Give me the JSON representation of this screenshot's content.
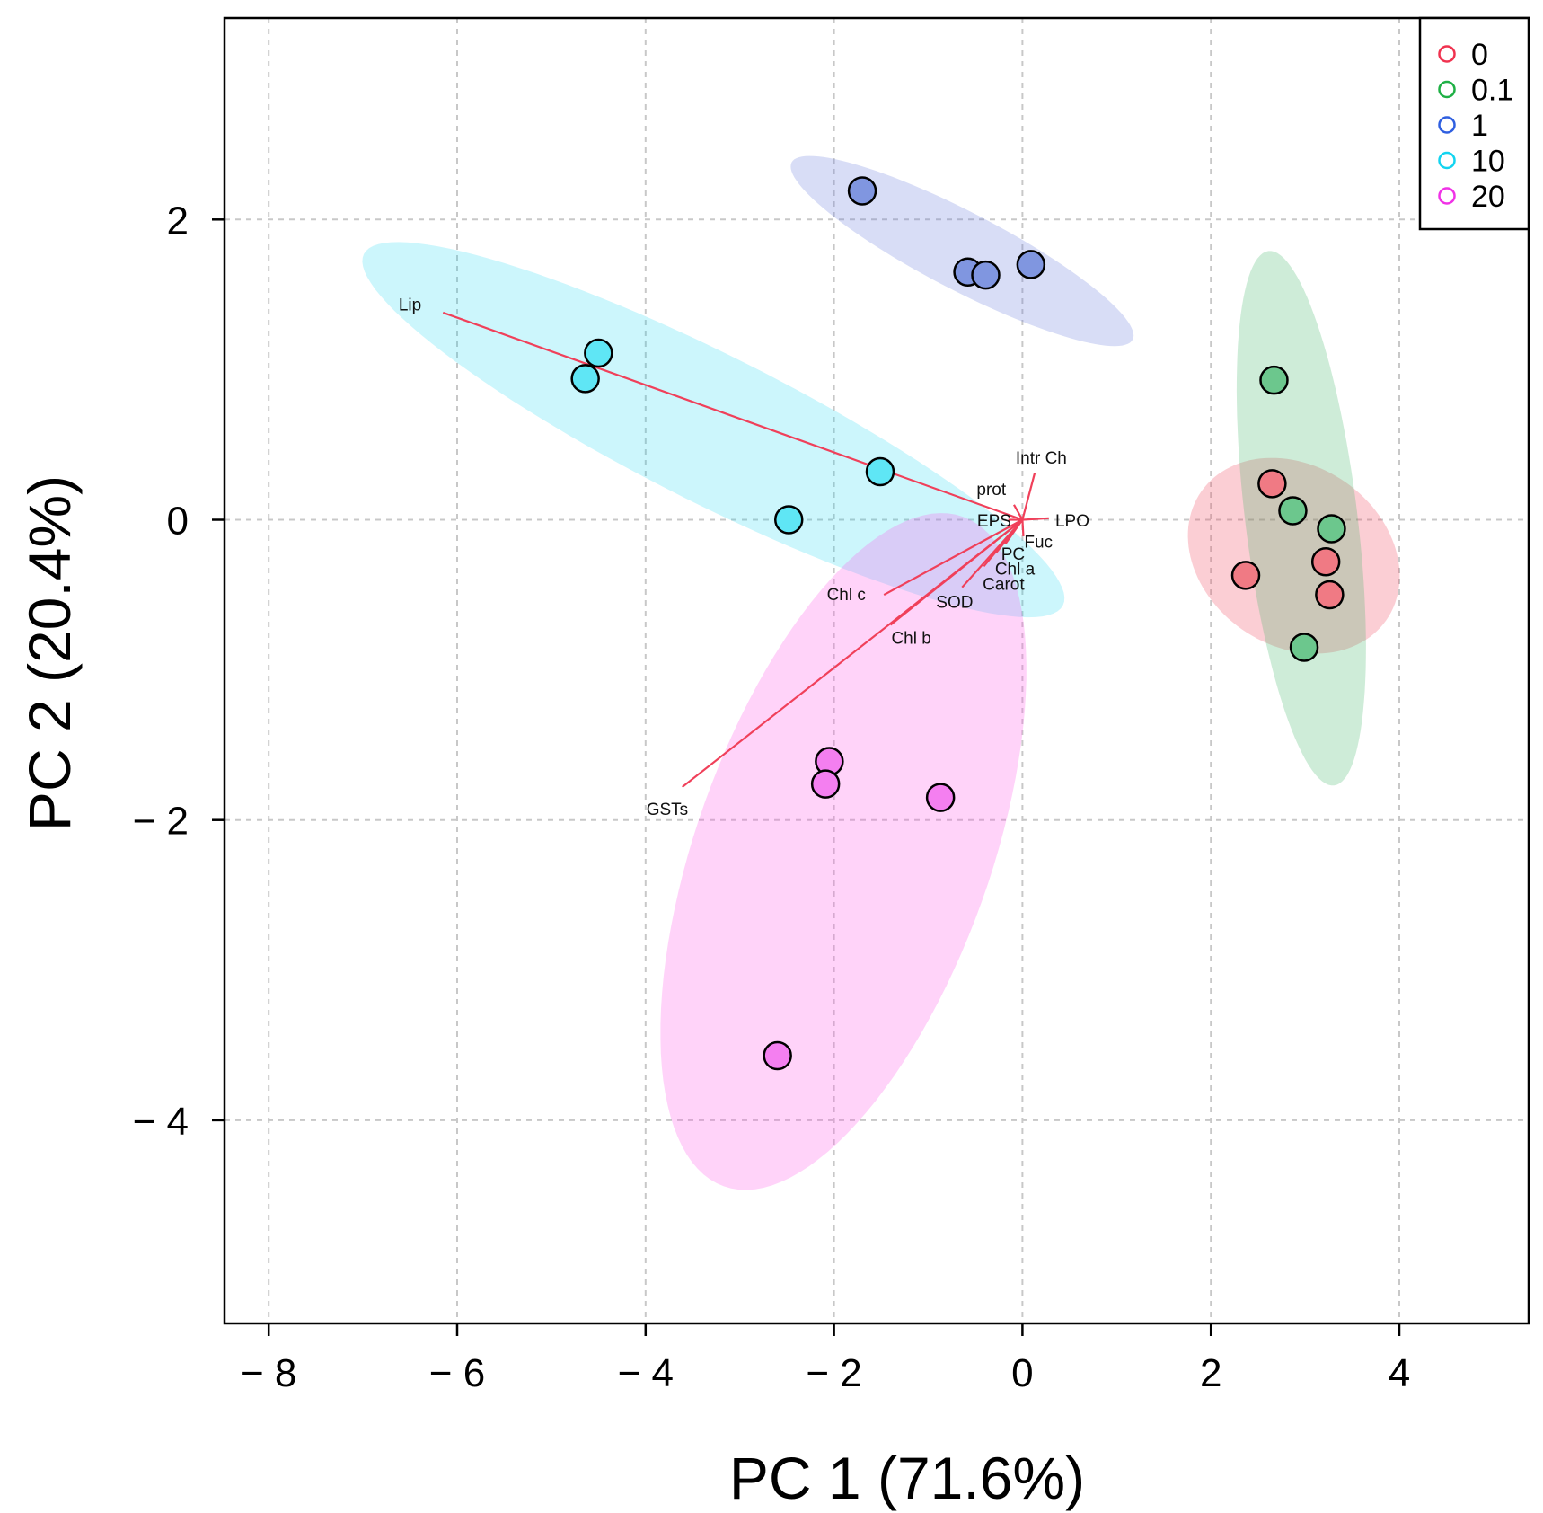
{
  "chart_data": {
    "type": "scatter",
    "title": "",
    "xlabel": "PC 1 (71.6%)",
    "ylabel": "PC 2 (20.4%)",
    "xlim": [
      -8.5,
      5.4
    ],
    "ylim": [
      -5.4,
      3.35
    ],
    "grid": true,
    "x_ticks": [
      -8,
      -6,
      -4,
      -2,
      0,
      2,
      4
    ],
    "x_tick_labels": [
      "− 8",
      "− 6",
      "− 4",
      "− 2",
      "0",
      "2",
      "4"
    ],
    "y_ticks": [
      -4,
      -2,
      0,
      2
    ],
    "y_tick_labels": [
      "− 4",
      "− 2",
      "0",
      "2"
    ],
    "legend_placement": "top-right",
    "series": [
      {
        "name": "0",
        "color": "#f0324f",
        "fill": "#f07a84",
        "ellipse_fill": "rgba(240,80,100,0.28)",
        "points": [
          [
            2.65,
            0.24
          ],
          [
            3.22,
            -0.28
          ],
          [
            3.26,
            -0.5
          ],
          [
            2.37,
            -0.37
          ]
        ],
        "ellipse": {
          "center": [
            2.88,
            -0.24
          ],
          "u": [
            0.98,
            -0.43
          ],
          "v": [
            -0.55,
            -0.49
          ]
        }
      },
      {
        "name": "0.1",
        "color": "#1fb045",
        "fill": "#6cc78d",
        "ellipse_fill": "rgba(60,180,100,0.25)",
        "points": [
          [
            2.67,
            0.93
          ],
          [
            2.87,
            0.06
          ],
          [
            3.28,
            -0.06
          ],
          [
            2.99,
            -0.85
          ]
        ],
        "ellipse": {
          "center": [
            2.96,
            0.01
          ],
          "u": [
            0.35,
            -1.78
          ],
          "v": [
            -0.59,
            -0.05
          ]
        }
      },
      {
        "name": "1",
        "color": "#2f5fe0",
        "fill": "#8096e0",
        "ellipse_fill": "rgba(100,120,220,0.25)",
        "points": [
          [
            -1.7,
            2.19
          ],
          [
            -0.58,
            1.65
          ],
          [
            -0.39,
            1.63
          ],
          [
            0.09,
            1.7
          ]
        ],
        "ellipse": {
          "center": [
            -0.64,
            1.79
          ],
          "u": [
            1.81,
            -0.59
          ],
          "v": [
            -0.19,
            -0.23
          ]
        }
      },
      {
        "name": "10",
        "color": "#12d4f0",
        "fill": "#5fe6f5",
        "ellipse_fill": "rgba(0,210,240,0.2)",
        "points": [
          [
            -4.5,
            1.11
          ],
          [
            -4.64,
            0.94
          ],
          [
            -1.51,
            0.32
          ],
          [
            -2.48,
            0.0
          ]
        ],
        "ellipse": {
          "center": [
            -3.28,
            0.6
          ],
          "u": [
            3.71,
            -1.17
          ],
          "v": [
            -0.35,
            -0.44
          ]
        }
      },
      {
        "name": "20",
        "color": "#f032e6",
        "fill": "#f47ff0",
        "ellipse_fill": "rgba(255,80,230,0.25)",
        "points": [
          [
            -2.05,
            -1.61
          ],
          [
            -2.09,
            -1.76
          ],
          [
            -0.87,
            -1.85
          ],
          [
            -2.6,
            -3.57
          ]
        ],
        "ellipse": {
          "center": [
            -1.9,
            -2.21
          ],
          "u": [
            -1.27,
            -2.23
          ],
          "v": [
            -1.47,
            0.33
          ]
        }
      }
    ],
    "loadings_color": "#f0405a",
    "loadings": [
      {
        "label": "Lip",
        "end": [
          -6.15,
          1.38
        ],
        "label_at": [
          -6.5,
          1.43
        ]
      },
      {
        "label": "GSTs",
        "end": [
          -3.61,
          -1.78
        ],
        "label_at": [
          -3.77,
          -1.93
        ]
      },
      {
        "label": "Chl c",
        "end": [
          -1.47,
          -0.5
        ],
        "label_at": [
          -1.87,
          -0.5
        ]
      },
      {
        "label": "Chl b",
        "end": [
          -1.4,
          -0.7
        ],
        "label_at": [
          -1.18,
          -0.79
        ]
      },
      {
        "label": "SOD",
        "end": [
          -0.64,
          -0.45
        ],
        "label_at": [
          -0.72,
          -0.55
        ]
      },
      {
        "label": "Carot",
        "end": [
          -0.41,
          -0.31
        ],
        "label_at": [
          -0.2,
          -0.43
        ]
      },
      {
        "label": "Chl a",
        "end": [
          -0.28,
          -0.22
        ],
        "label_at": [
          -0.08,
          -0.33
        ]
      },
      {
        "label": "PC",
        "end": [
          -0.18,
          -0.16
        ],
        "label_at": [
          -0.1,
          -0.23
        ]
      },
      {
        "label": "Fuc",
        "end": [
          0.01,
          -0.11
        ],
        "label_at": [
          0.17,
          -0.15
        ]
      },
      {
        "label": "EPS",
        "end": [
          -0.15,
          0.0
        ],
        "label_at": [
          -0.3,
          -0.01
        ]
      },
      {
        "label": "prot",
        "end": [
          -0.09,
          0.1
        ],
        "label_at": [
          -0.33,
          0.2
        ]
      },
      {
        "label": "Intr Ch",
        "end": [
          0.13,
          0.31
        ],
        "label_at": [
          0.2,
          0.41
        ]
      },
      {
        "label": "LPO",
        "end": [
          0.28,
          0.01
        ],
        "label_at": [
          0.53,
          -0.01
        ]
      }
    ]
  }
}
